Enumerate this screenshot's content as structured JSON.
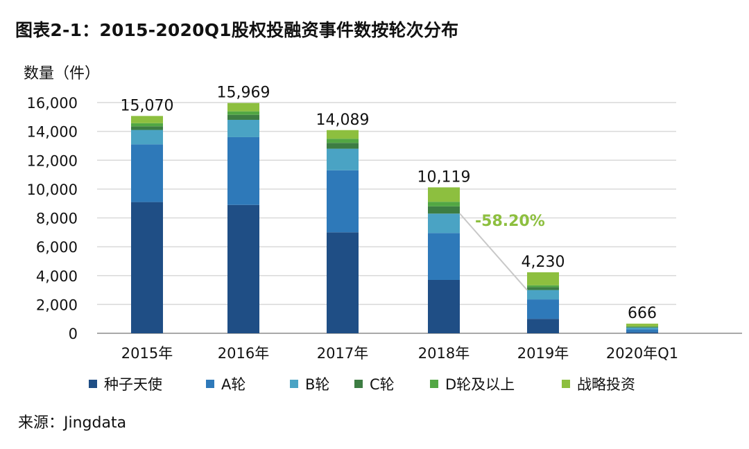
{
  "title": "图表2-1：2015-2020Q1股权投融资事件数按轮次分布",
  "source": "来源：Jingdata",
  "colors": {
    "seed_angel": "#1f4e85",
    "round_a": "#2e79b9",
    "round_b": "#4aa3c4",
    "round_c": "#3d7d43",
    "round_d_plus": "#52a744",
    "strategic": "#8dbf3f",
    "gridline": "#d9d9d9",
    "axis": "#8c8c8c",
    "change_label": "#8dbf3f",
    "connector": "#c8c8c8"
  },
  "chart_data": {
    "type": "bar",
    "stacked": true,
    "ylabel": "数量（件）",
    "xlabel": "",
    "ylim": [
      0,
      16000
    ],
    "yticks": [
      0,
      2000,
      4000,
      6000,
      8000,
      10000,
      12000,
      14000,
      16000
    ],
    "ytick_labels": [
      "0",
      "2,000",
      "4,000",
      "6,000",
      "8,000",
      "10,000",
      "12,000",
      "14,000",
      "16,000"
    ],
    "grid": true,
    "legend_position": "bottom",
    "categories": [
      "2015年",
      "2016年",
      "2017年",
      "2018年",
      "2019年",
      "2020年Q1"
    ],
    "totals": [
      15070,
      15969,
      14089,
      10119,
      4230,
      666
    ],
    "total_labels": [
      "15,070",
      "15,969",
      "14,089",
      "10,119",
      "4,230",
      "666"
    ],
    "series": [
      {
        "name": "种子天使",
        "color_key": "seed_angel",
        "values": [
          9100,
          8900,
          7000,
          3700,
          1000,
          80
        ]
      },
      {
        "name": "A轮",
        "color_key": "round_a",
        "values": [
          4000,
          4700,
          4300,
          3250,
          1350,
          200
        ]
      },
      {
        "name": "B轮",
        "color_key": "round_b",
        "values": [
          1000,
          1200,
          1500,
          1350,
          650,
          120
        ]
      },
      {
        "name": "C轮",
        "color_key": "round_c",
        "values": [
          250,
          350,
          400,
          500,
          200,
          50
        ]
      },
      {
        "name": "D轮及以上",
        "color_key": "round_d_plus",
        "values": [
          220,
          240,
          290,
          319,
          130,
          36
        ]
      },
      {
        "name": "战略投资",
        "color_key": "strategic",
        "values": [
          500,
          579,
          599,
          1000,
          900,
          180
        ]
      }
    ],
    "annotations": [
      {
        "text": "-58.20%",
        "from_category": "2018年",
        "to_category": "2019年"
      }
    ]
  }
}
